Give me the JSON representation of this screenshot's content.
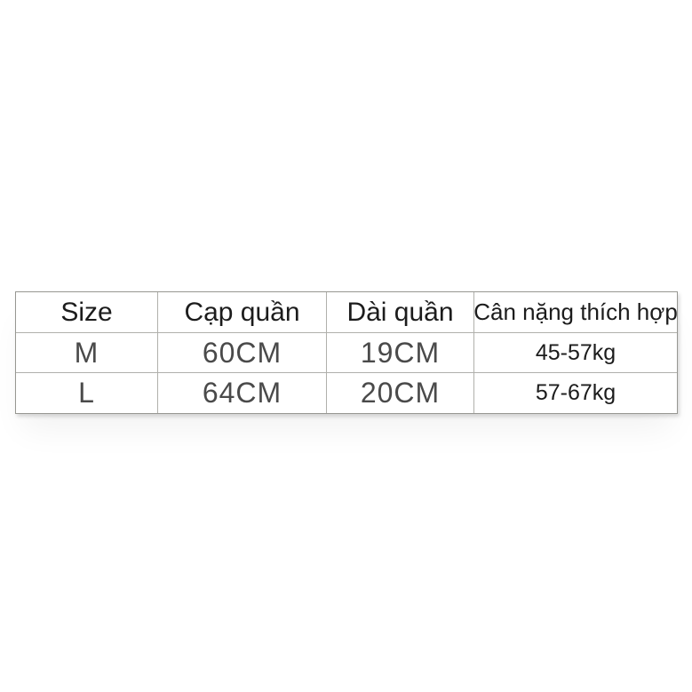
{
  "chart_data": {
    "type": "table",
    "title": "",
    "columns": [
      "Size",
      "Cạp quần",
      "Dài quần",
      "Cân nặng thích hợp"
    ],
    "rows": [
      [
        "M",
        "60CM",
        "19CM",
        "45-57kg"
      ],
      [
        "L",
        "64CM",
        "20CM",
        "57-67kg"
      ]
    ],
    "units": {
      "waist": "CM",
      "length": "CM",
      "weight": "kg"
    },
    "layout": {
      "grid": "on",
      "header_row": true
    }
  },
  "colors": {
    "background": "#ffffff",
    "border": "#b0b0ac",
    "header_text": "#1c1c1c",
    "value_text": "#4a4a4a"
  }
}
